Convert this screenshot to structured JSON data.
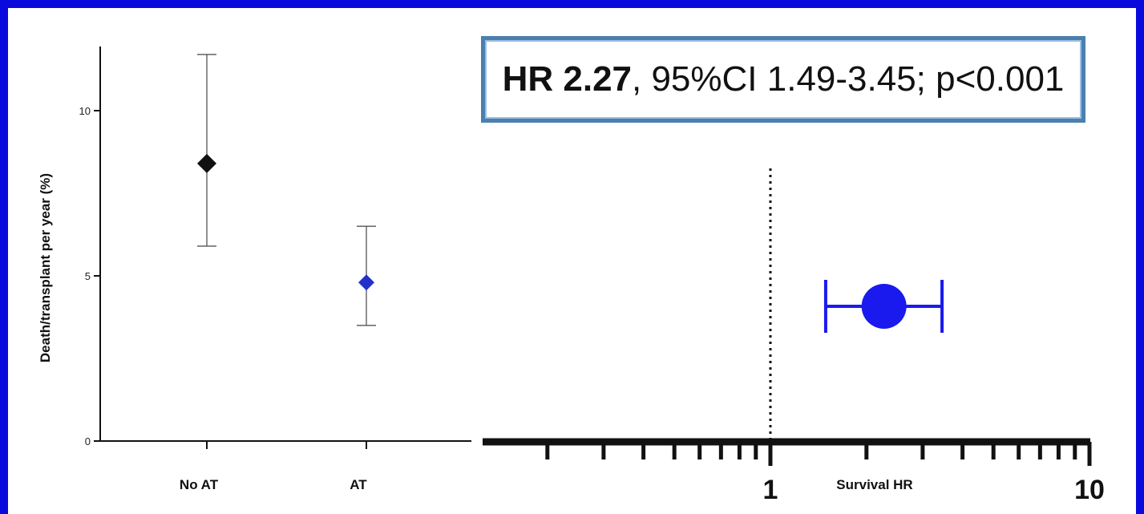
{
  "annotation": {
    "bold": "HR 2.27",
    "rest": ", 95%CI 1.49-3.45; p<0.001"
  },
  "chart_data": [
    {
      "type": "scatter",
      "title": "",
      "ylabel": "Death/transplant per year (%)",
      "xlabel": "",
      "ylim": [
        0,
        12
      ],
      "yticks": [
        0,
        5,
        10
      ],
      "categories": [
        "No AT",
        "AT"
      ],
      "points": [
        {
          "category": "No AT",
          "value": 8.4,
          "lower": 5.9,
          "upper": 11.7,
          "color": "#111111",
          "marker": "diamond"
        },
        {
          "category": "AT",
          "value": 4.8,
          "lower": 3.5,
          "upper": 6.5,
          "color": "#2233cc",
          "marker": "diamond"
        }
      ]
    },
    {
      "type": "scatter",
      "title": "",
      "xlabel": "Survival HR",
      "xscale": "log",
      "xlim": [
        0.1,
        10
      ],
      "xtick_labels": [
        "1",
        "10"
      ],
      "reference_line": 1,
      "points": [
        {
          "label": "Survival HR",
          "value": 2.27,
          "lower": 1.49,
          "upper": 3.45,
          "color": "#1a1aee",
          "marker": "circle"
        }
      ]
    }
  ]
}
